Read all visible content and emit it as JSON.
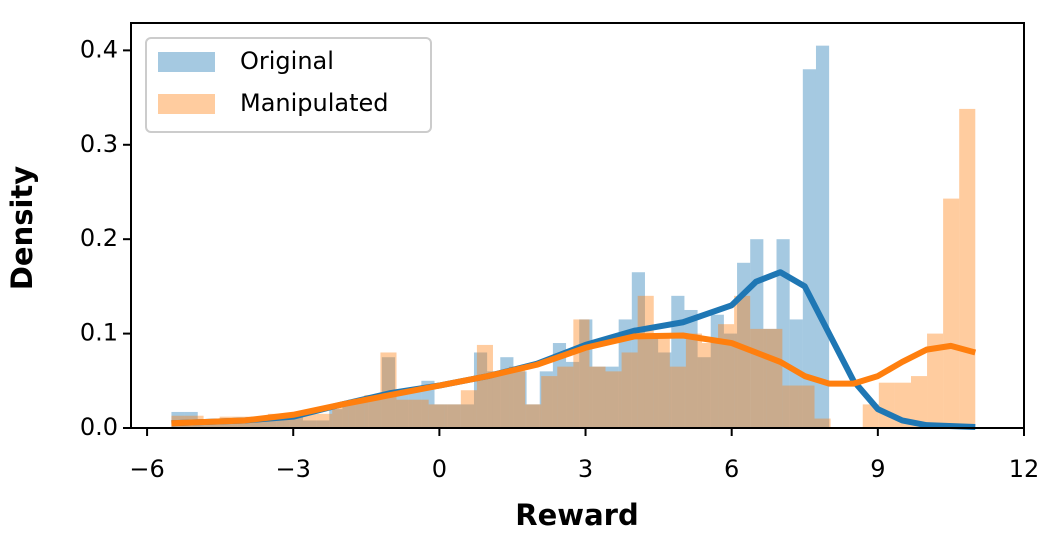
{
  "chart_data": {
    "type": "histogram",
    "xlabel": "Reward",
    "ylabel": "Density",
    "xlim": [
      -6.33,
      12
    ],
    "ylim": [
      0,
      0.429
    ],
    "xticks": [
      {
        "value": -6,
        "label": "−6"
      },
      {
        "value": -3,
        "label": "−3"
      },
      0,
      3,
      6,
      9,
      12
    ],
    "yticks": [
      {
        "value": 0,
        "label": "0.0"
      },
      0.1,
      0.2,
      0.3,
      0.4
    ],
    "legend": "upper-left",
    "opacity": 0.4,
    "series": [
      {
        "name": "Original",
        "color": "#1f77b4",
        "bins": [
          -5.5,
          -5.23,
          -4.96,
          -4.69,
          -4.42,
          -4.15,
          -3.88,
          -3.61,
          -3.34,
          -3.07,
          -2.8,
          -2.53,
          -2.26,
          -1.99,
          -1.72,
          -1.45,
          -1.18,
          -0.91,
          -0.64,
          -0.37,
          -0.1,
          0.17,
          0.44,
          0.71,
          0.98,
          1.25,
          1.52,
          1.79,
          2.06,
          2.33,
          2.6,
          2.87,
          3.14,
          3.41,
          3.68,
          3.95,
          4.22,
          4.49,
          4.76,
          5.03,
          5.3,
          5.57,
          5.84,
          6.11,
          6.38,
          6.65,
          6.92,
          7.19,
          7.46,
          7.73,
          8.0
        ],
        "values": [
          0.017,
          0.017,
          0.008,
          0.008,
          0.008,
          0.008,
          0.008,
          0.008,
          0.012,
          0.012,
          0.008,
          0.008,
          0.02,
          0.025,
          0.03,
          0.035,
          0.075,
          0.04,
          0.04,
          0.05,
          0.025,
          0.025,
          0.025,
          0.08,
          0.06,
          0.075,
          0.06,
          0.025,
          0.06,
          0.09,
          0.07,
          0.115,
          0.065,
          0.065,
          0.115,
          0.165,
          0.1,
          0.08,
          0.14,
          0.125,
          0.075,
          0.12,
          0.1,
          0.175,
          0.2,
          0.105,
          0.2,
          0.115,
          0.38,
          0.405
        ]
      },
      {
        "name": "Manipulated",
        "color": "#ff7f0e",
        "bins": [
          -5.5,
          -5.17,
          -4.84,
          -4.51,
          -4.18,
          -3.85,
          -3.52,
          -3.19,
          -2.86,
          -2.53,
          -2.2,
          -1.87,
          -1.54,
          -1.21,
          -0.88,
          -0.55,
          -0.22,
          0.11,
          0.44,
          0.77,
          1.1,
          1.43,
          1.76,
          2.09,
          2.42,
          2.75,
          3.08,
          3.41,
          3.74,
          4.07,
          4.4,
          4.73,
          5.06,
          5.39,
          5.72,
          6.05,
          6.38,
          6.71,
          7.04,
          7.37,
          7.7,
          8.03,
          8.36,
          8.69,
          9.02,
          9.35,
          9.68,
          10.01,
          10.34,
          10.67,
          11.0
        ],
        "values": [
          0.013,
          0.013,
          0.008,
          0.012,
          0.012,
          0.012,
          0.015,
          0.015,
          0.015,
          0.015,
          0.025,
          0.03,
          0.035,
          0.08,
          0.03,
          0.03,
          0.025,
          0.025,
          0.04,
          0.088,
          0.06,
          0.065,
          0.025,
          0.055,
          0.065,
          0.115,
          0.065,
          0.06,
          0.08,
          0.14,
          0.1,
          0.065,
          0.1,
          0.09,
          0.11,
          0.14,
          0.105,
          0.105,
          0.045,
          0.045,
          0.01,
          0,
          0,
          0.025,
          0.048,
          0.048,
          0.055,
          0.1,
          0.243,
          0.338
        ]
      }
    ],
    "lines": [
      {
        "color": "#1f77b4",
        "x": [
          -5.5,
          -4,
          -3,
          -2,
          -1,
          0,
          1,
          2,
          3,
          4,
          5,
          6,
          6.5,
          7,
          7.5,
          8,
          8.5,
          9,
          9.5,
          10,
          11
        ],
        "values": [
          0.005,
          0.008,
          0.012,
          0.025,
          0.037,
          0.045,
          0.055,
          0.068,
          0.088,
          0.103,
          0.112,
          0.13,
          0.155,
          0.165,
          0.15,
          0.1,
          0.05,
          0.02,
          0.008,
          0.003,
          0.001
        ]
      },
      {
        "color": "#ff7f0e",
        "x": [
          -5.5,
          -4,
          -3,
          -2,
          -1,
          0,
          1,
          2,
          3,
          4,
          5,
          6,
          7,
          7.5,
          8,
          8.5,
          9,
          9.5,
          10,
          10.5,
          11
        ],
        "values": [
          0.005,
          0.008,
          0.014,
          0.025,
          0.035,
          0.045,
          0.055,
          0.067,
          0.085,
          0.097,
          0.098,
          0.09,
          0.07,
          0.055,
          0.047,
          0.047,
          0.055,
          0.07,
          0.083,
          0.087,
          0.08
        ]
      }
    ]
  }
}
